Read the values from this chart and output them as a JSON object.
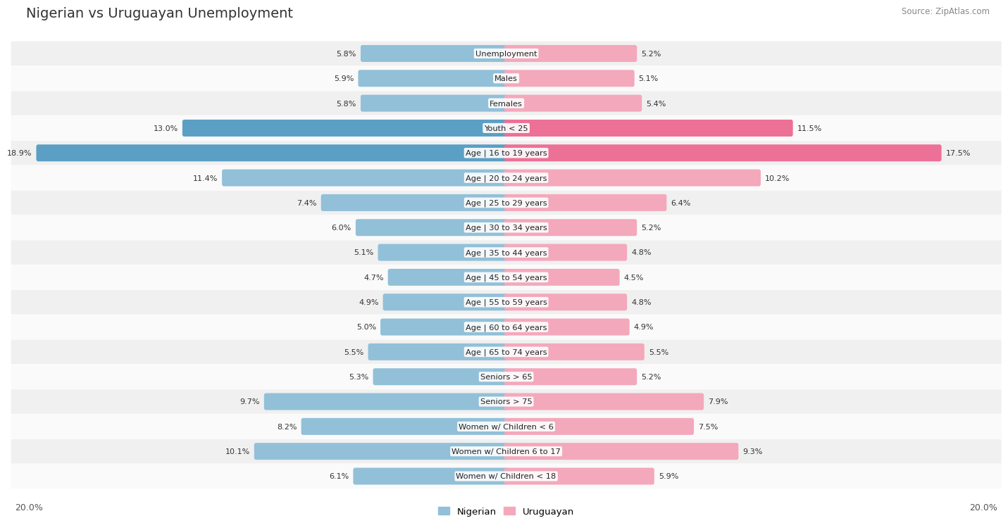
{
  "title": "Nigerian vs Uruguayan Unemployment",
  "source": "Source: ZipAtlas.com",
  "categories": [
    "Unemployment",
    "Males",
    "Females",
    "Youth < 25",
    "Age | 16 to 19 years",
    "Age | 20 to 24 years",
    "Age | 25 to 29 years",
    "Age | 30 to 34 years",
    "Age | 35 to 44 years",
    "Age | 45 to 54 years",
    "Age | 55 to 59 years",
    "Age | 60 to 64 years",
    "Age | 65 to 74 years",
    "Seniors > 65",
    "Seniors > 75",
    "Women w/ Children < 6",
    "Women w/ Children 6 to 17",
    "Women w/ Children < 18"
  ],
  "nigerian": [
    5.8,
    5.9,
    5.8,
    13.0,
    18.9,
    11.4,
    7.4,
    6.0,
    5.1,
    4.7,
    4.9,
    5.0,
    5.5,
    5.3,
    9.7,
    8.2,
    10.1,
    6.1
  ],
  "uruguayan": [
    5.2,
    5.1,
    5.4,
    11.5,
    17.5,
    10.2,
    6.4,
    5.2,
    4.8,
    4.5,
    4.8,
    4.9,
    5.5,
    5.2,
    7.9,
    7.5,
    9.3,
    5.9
  ],
  "nigerian_color": "#92c0d8",
  "uruguayan_color": "#f4a8bc",
  "nigerian_highlight_color": "#5b9fc4",
  "uruguayan_highlight_color": "#ed7096",
  "row_bg_even": "#f0f0f0",
  "row_bg_odd": "#fafafa",
  "max_val": 20.0,
  "legend_nigerian": "Nigerian",
  "legend_uruguayan": "Uruguayan",
  "axis_label_left": "20.0%",
  "axis_label_right": "20.0%"
}
